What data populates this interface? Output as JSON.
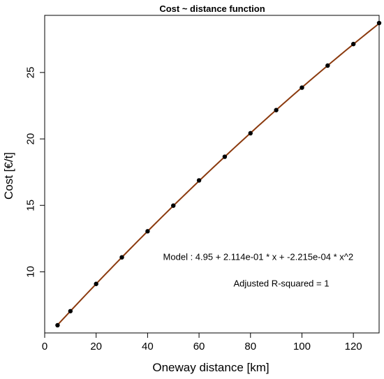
{
  "chart_data": {
    "type": "scatter",
    "title": "Cost ~ distance function",
    "xlabel": "Oneway distance [km]",
    "ylabel": "Cost [€/t]",
    "xlim": [
      0,
      130
    ],
    "ylim": [
      5.4,
      29.3
    ],
    "x_ticks": [
      0,
      20,
      40,
      60,
      80,
      100,
      120
    ],
    "y_ticks": [
      10,
      15,
      20,
      25
    ],
    "grid": false,
    "series": [
      {
        "type": "scatter",
        "color": "#000000",
        "x": [
          5,
          10,
          20,
          30,
          40,
          50,
          60,
          70,
          80,
          90,
          100,
          110,
          120,
          130
        ],
        "y": [
          5.98,
          7.04,
          9.09,
          11.09,
          13.05,
          14.98,
          16.88,
          18.66,
          20.43,
          22.17,
          23.86,
          25.52,
          27.14,
          28.72
        ]
      },
      {
        "type": "line",
        "color": "#8b3a0e",
        "x": [
          5,
          130
        ],
        "model": {
          "intercept": 4.95,
          "b1": 0.2114,
          "b2": -0.0002215
        }
      }
    ],
    "annotations": [
      {
        "text": "Model :  4.95  +  2.114e-01 * x + -2.215e-04 * x^2",
        "x": 83,
        "y": 10.9
      },
      {
        "text": "Adjusted R-squared = 1",
        "x": 92,
        "y": 8.9
      }
    ]
  }
}
